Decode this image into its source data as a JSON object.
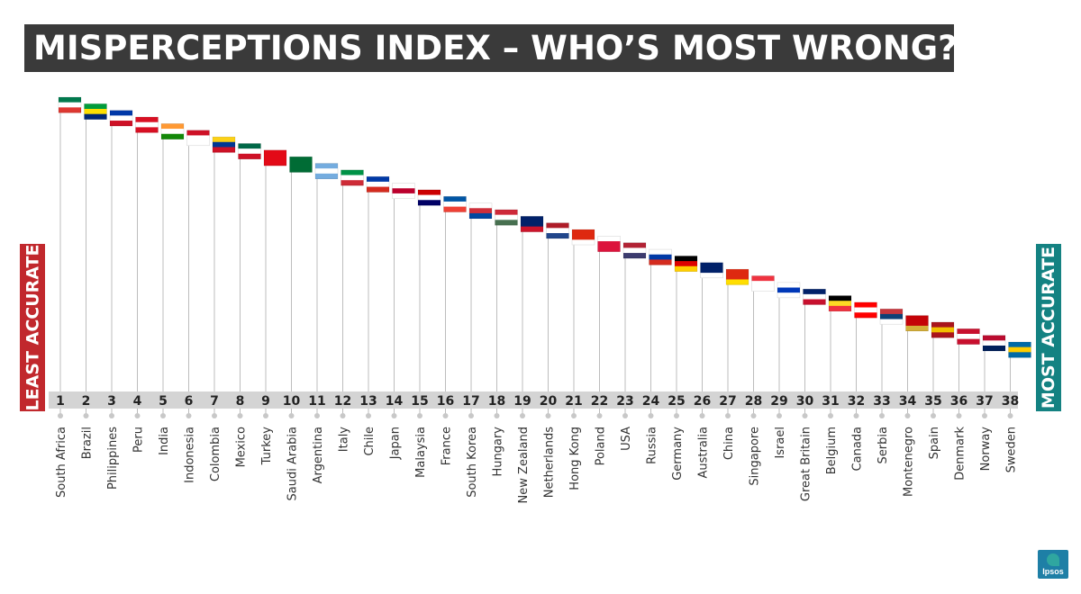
{
  "header": {
    "title": "MISPERCEPTIONS INDEX – WHO’S MOST WRONG?"
  },
  "side_labels": {
    "least": "LEAST ACCURATE",
    "most": "MOST ACCURATE"
  },
  "colors": {
    "title_bg": "#3a3a3a",
    "least_accurate": "#c1282d",
    "most_accurate": "#148282",
    "rank_band": "#d4d4d4",
    "stem": "#bdbdbd"
  },
  "logo": {
    "text": "Ipsos"
  },
  "chart_data": {
    "type": "ranking",
    "title": "MISPERCEPTIONS INDEX – WHO’S MOST WRONG?",
    "ranks": [
      1,
      2,
      3,
      4,
      5,
      6,
      7,
      8,
      9,
      10,
      11,
      12,
      13,
      14,
      15,
      16,
      17,
      18,
      19,
      20,
      21,
      22,
      23,
      24,
      25,
      26,
      27,
      28,
      29,
      30,
      31,
      32,
      33,
      34,
      35,
      36,
      37,
      38
    ],
    "categories": [
      "South Africa",
      "Brazil",
      "Philippines",
      "Peru",
      "India",
      "Indonesia",
      "Colombia",
      "Mexico",
      "Turkey",
      "Saudi Arabia",
      "Argentina",
      "Italy",
      "Chile",
      "Japan",
      "Malaysia",
      "France",
      "South Korea",
      "Hungary",
      "New Zealand",
      "Netherlands",
      "Hong Kong",
      "Poland",
      "USA",
      "Russia",
      "Germany",
      "Australia",
      "China",
      "Singapore",
      "Israel",
      "Great Britain",
      "Belgium",
      "Canada",
      "Serbia",
      "Montenegro",
      "Spain",
      "Denmark",
      "Norway",
      "Sweden"
    ],
    "flag_icons": [
      "south-africa-flag-icon",
      "brazil-flag-icon",
      "philippines-flag-icon",
      "peru-flag-icon",
      "india-flag-icon",
      "indonesia-flag-icon",
      "colombia-flag-icon",
      "mexico-flag-icon",
      "turkey-flag-icon",
      "saudi-arabia-flag-icon",
      "argentina-flag-icon",
      "italy-flag-icon",
      "chile-flag-icon",
      "japan-flag-icon",
      "malaysia-flag-icon",
      "france-flag-icon",
      "south-korea-flag-icon",
      "hungary-flag-icon",
      "new-zealand-flag-icon",
      "netherlands-flag-icon",
      "hong-kong-flag-icon",
      "poland-flag-icon",
      "usa-flag-icon",
      "russia-flag-icon",
      "germany-flag-icon",
      "australia-flag-icon",
      "china-flag-icon",
      "singapore-flag-icon",
      "israel-flag-icon",
      "great-britain-flag-icon",
      "belgium-flag-icon",
      "canada-flag-icon",
      "serbia-flag-icon",
      "montenegro-flag-icon",
      "spain-flag-icon",
      "denmark-flag-icon",
      "norway-flag-icon",
      "sweden-flag-icon"
    ],
    "flag_colors": [
      [
        "#007a4d",
        "#ffffff",
        "#de3831"
      ],
      [
        "#009c3b",
        "#ffdf00",
        "#002776"
      ],
      [
        "#0038a8",
        "#ffffff",
        "#ce1126"
      ],
      [
        "#d91023",
        "#ffffff",
        "#d91023"
      ],
      [
        "#ff9933",
        "#ffffff",
        "#138808"
      ],
      [
        "#ce1126",
        "#ffffff",
        "#ffffff"
      ],
      [
        "#fcd116",
        "#003893",
        "#ce1126"
      ],
      [
        "#006847",
        "#ffffff",
        "#ce1126"
      ],
      [
        "#e30a17",
        "#e30a17",
        "#e30a17"
      ],
      [
        "#006c35",
        "#006c35",
        "#006c35"
      ],
      [
        "#74acdf",
        "#ffffff",
        "#74acdf"
      ],
      [
        "#009246",
        "#ffffff",
        "#ce2b37"
      ],
      [
        "#0039a6",
        "#ffffff",
        "#d52b1e"
      ],
      [
        "#ffffff",
        "#bc002d",
        "#ffffff"
      ],
      [
        "#cc0001",
        "#ffffff",
        "#010066"
      ],
      [
        "#0055a4",
        "#ffffff",
        "#ef4135"
      ],
      [
        "#ffffff",
        "#cd2e3a",
        "#0047a0"
      ],
      [
        "#ce2939",
        "#ffffff",
        "#477050"
      ],
      [
        "#012169",
        "#012169",
        "#cc142b"
      ],
      [
        "#ae1c28",
        "#ffffff",
        "#21468b"
      ],
      [
        "#de2910",
        "#de2910",
        "#ffffff"
      ],
      [
        "#ffffff",
        "#dc143c",
        "#dc143c"
      ],
      [
        "#b22234",
        "#ffffff",
        "#3c3b6e"
      ],
      [
        "#ffffff",
        "#0039a6",
        "#d52b1e"
      ],
      [
        "#000000",
        "#dd0000",
        "#ffce00"
      ],
      [
        "#012169",
        "#012169",
        "#ffffff"
      ],
      [
        "#de2910",
        "#de2910",
        "#ffde00"
      ],
      [
        "#ef3340",
        "#ffffff",
        "#ffffff"
      ],
      [
        "#ffffff",
        "#0038b8",
        "#ffffff"
      ],
      [
        "#012169",
        "#ffffff",
        "#c8102e"
      ],
      [
        "#000000",
        "#fdda24",
        "#ef3340"
      ],
      [
        "#ff0000",
        "#ffffff",
        "#ff0000"
      ],
      [
        "#c6363c",
        "#0c4076",
        "#ffffff"
      ],
      [
        "#c40308",
        "#c40308",
        "#d4af3a"
      ],
      [
        "#aa151b",
        "#f1bf00",
        "#aa151b"
      ],
      [
        "#c8102e",
        "#ffffff",
        "#c8102e"
      ],
      [
        "#ba0c2f",
        "#ffffff",
        "#00205b"
      ],
      [
        "#006aa7",
        "#fecc00",
        "#006aa7"
      ]
    ],
    "layout_order": "ranked left to right, 1 = least accurate, 38 = most accurate"
  }
}
